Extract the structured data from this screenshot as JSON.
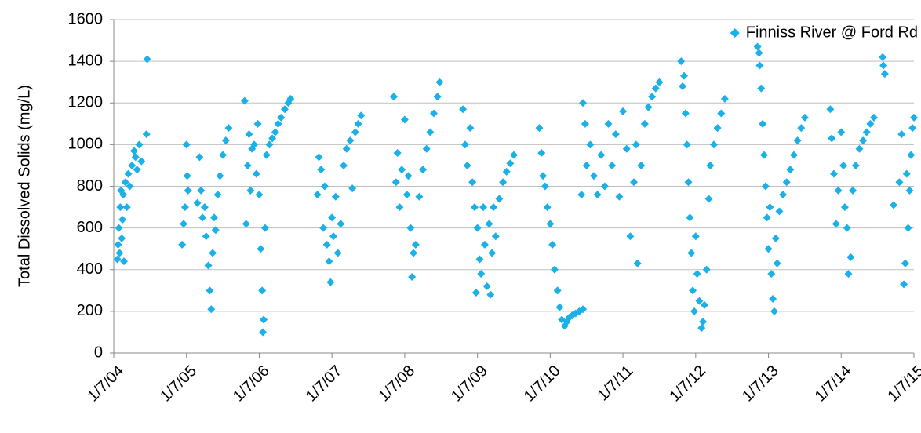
{
  "chart_data": {
    "type": "scatter",
    "y_label": "Total Dissolved Solids (mg/L)",
    "xlim": [
      2004,
      2015
    ],
    "ylim": [
      0,
      1600
    ],
    "xticks": [
      {
        "value": 2004,
        "label": "1/7/04"
      },
      {
        "value": 2005,
        "label": "1/7/05"
      },
      {
        "value": 2006,
        "label": "1/7/06"
      },
      {
        "value": 2007,
        "label": "1/7/07"
      },
      {
        "value": 2008,
        "label": "1/7/08"
      },
      {
        "value": 2009,
        "label": "1/7/09"
      },
      {
        "value": 2010,
        "label": "1/7/10"
      },
      {
        "value": 2011,
        "label": "1/7/11"
      },
      {
        "value": 2012,
        "label": "1/7/12"
      },
      {
        "value": 2013,
        "label": "1/7/13"
      },
      {
        "value": 2014,
        "label": "1/7/14"
      },
      {
        "value": 2015,
        "label": "1/7/15"
      }
    ],
    "yticks": [
      0,
      200,
      400,
      600,
      800,
      1000,
      1200,
      1400,
      1600
    ],
    "grid": true,
    "legend": "top-right",
    "x": [
      2004.05,
      2004.06,
      2004.07,
      2004.08,
      2004.09,
      2004.1,
      2004.11,
      2004.12,
      2004.13,
      2004.14,
      2004.16,
      2004.18,
      2004.2,
      2004.22,
      2004.25,
      2004.28,
      2004.3,
      2004.32,
      2004.35,
      2004.38,
      2004.45,
      2004.46,
      2004.94,
      2004.96,
      2004.98,
      2005.0,
      2005.01,
      2005.02,
      2005.15,
      2005.18,
      2005.2,
      2005.22,
      2005.25,
      2005.27,
      2005.3,
      2005.32,
      2005.34,
      2005.36,
      2005.38,
      2005.4,
      2005.43,
      2005.46,
      2005.5,
      2005.54,
      2005.58,
      2005.8,
      2005.82,
      2005.84,
      2005.86,
      2005.88,
      2005.9,
      2005.93,
      2005.96,
      2005.98,
      2006.0,
      2006.02,
      2006.04,
      2006.05,
      2006.06,
      2006.08,
      2006.1,
      2006.14,
      2006.18,
      2006.22,
      2006.26,
      2006.3,
      2006.35,
      2006.4,
      2006.43,
      2006.8,
      2006.82,
      2006.85,
      2006.88,
      2006.9,
      2006.93,
      2006.96,
      2006.98,
      2007.0,
      2007.02,
      2007.05,
      2007.08,
      2007.12,
      2007.16,
      2007.2,
      2007.25,
      2007.28,
      2007.32,
      2007.36,
      2007.4,
      2007.85,
      2007.88,
      2007.9,
      2007.93,
      2007.96,
      2008.0,
      2008.03,
      2008.05,
      2008.08,
      2008.1,
      2008.12,
      2008.15,
      2008.2,
      2008.25,
      2008.3,
      2008.35,
      2008.4,
      2008.45,
      2008.48,
      2008.8,
      2008.83,
      2008.86,
      2008.9,
      2008.93,
      2008.96,
      2008.98,
      2009.0,
      2009.03,
      2009.05,
      2009.08,
      2009.1,
      2009.13,
      2009.16,
      2009.18,
      2009.2,
      2009.22,
      2009.25,
      2009.3,
      2009.35,
      2009.4,
      2009.45,
      2009.5,
      2009.85,
      2009.88,
      2009.9,
      2009.93,
      2009.96,
      2010.0,
      2010.03,
      2010.06,
      2010.1,
      2010.13,
      2010.16,
      2010.2,
      2010.23,
      2010.26,
      2010.3,
      2010.35,
      2010.4,
      2010.45,
      2010.43,
      2010.45,
      2010.48,
      2010.5,
      2010.55,
      2010.6,
      2010.65,
      2010.7,
      2010.75,
      2010.8,
      2010.85,
      2010.9,
      2010.95,
      2011.0,
      2011.05,
      2011.1,
      2011.15,
      2011.18,
      2011.2,
      2011.25,
      2011.3,
      2011.35,
      2011.4,
      2011.45,
      2011.5,
      2011.8,
      2011.82,
      2011.84,
      2011.86,
      2011.88,
      2011.9,
      2011.92,
      2011.94,
      2011.96,
      2011.98,
      2012.0,
      2012.02,
      2012.05,
      2012.08,
      2012.1,
      2012.12,
      2012.15,
      2012.18,
      2012.2,
      2012.25,
      2012.3,
      2012.35,
      2012.4,
      2012.85,
      2012.87,
      2012.88,
      2012.9,
      2012.92,
      2012.94,
      2012.96,
      2012.98,
      2013.0,
      2013.02,
      2013.04,
      2013.06,
      2013.08,
      2013.1,
      2013.12,
      2013.15,
      2013.2,
      2013.25,
      2013.3,
      2013.35,
      2013.4,
      2013.45,
      2013.5,
      2013.85,
      2013.87,
      2013.9,
      2013.93,
      2013.96,
      2014.0,
      2014.03,
      2014.05,
      2014.08,
      2014.1,
      2014.13,
      2014.16,
      2014.2,
      2014.25,
      2014.3,
      2014.35,
      2014.4,
      2014.45,
      2014.57,
      2014.58,
      2014.6,
      2014.72,
      2014.8,
      2014.83,
      2014.86,
      2014.88,
      2014.9,
      2014.92,
      2014.94,
      2014.96,
      2014.98,
      2015.0
    ],
    "series": [
      {
        "name": "Finniss River @ Ford Rd",
        "color": "#1ab0e8",
        "values": [
          450,
          520,
          600,
          480,
          700,
          780,
          550,
          640,
          760,
          440,
          820,
          700,
          860,
          800,
          900,
          970,
          940,
          880,
          1000,
          920,
          1050,
          1410,
          520,
          620,
          700,
          1000,
          850,
          780,
          720,
          940,
          780,
          650,
          700,
          560,
          420,
          300,
          210,
          480,
          650,
          590,
          760,
          850,
          950,
          1020,
          1080,
          1210,
          620,
          900,
          1050,
          780,
          980,
          1000,
          860,
          1100,
          760,
          500,
          300,
          100,
          160,
          600,
          950,
          1000,
          1030,
          1060,
          1100,
          1130,
          1170,
          1200,
          1220,
          760,
          940,
          880,
          600,
          800,
          520,
          440,
          340,
          650,
          560,
          750,
          480,
          620,
          900,
          980,
          1020,
          790,
          1060,
          1100,
          1140,
          1230,
          820,
          960,
          700,
          880,
          1120,
          760,
          850,
          600,
          365,
          480,
          520,
          750,
          880,
          980,
          1060,
          1150,
          1230,
          1300,
          1170,
          1000,
          900,
          1080,
          820,
          700,
          290,
          600,
          450,
          380,
          700,
          520,
          320,
          620,
          280,
          480,
          700,
          560,
          740,
          820,
          870,
          910,
          950,
          1080,
          960,
          850,
          800,
          700,
          620,
          520,
          400,
          300,
          220,
          160,
          130,
          150,
          170,
          180,
          190,
          200,
          210,
          760,
          1200,
          1100,
          900,
          1000,
          850,
          760,
          950,
          800,
          1100,
          900,
          1050,
          750,
          1160,
          980,
          560,
          820,
          1000,
          430,
          900,
          1100,
          1180,
          1230,
          1270,
          1300,
          1400,
          1280,
          1330,
          1150,
          1000,
          820,
          650,
          480,
          300,
          200,
          560,
          380,
          250,
          120,
          150,
          230,
          400,
          740,
          900,
          1000,
          1080,
          1150,
          1220,
          1470,
          1440,
          1380,
          1270,
          1100,
          950,
          800,
          650,
          500,
          700,
          380,
          260,
          200,
          550,
          430,
          680,
          760,
          820,
          880,
          950,
          1020,
          1080,
          1130,
          1170,
          1030,
          860,
          620,
          780,
          1060,
          900,
          700,
          600,
          380,
          460,
          780,
          900,
          980,
          1020,
          1060,
          1100,
          1130,
          1420,
          1380,
          1340,
          710,
          820,
          1050,
          330,
          430,
          860,
          600,
          780,
          950,
          1080,
          1130
        ]
      }
    ]
  }
}
